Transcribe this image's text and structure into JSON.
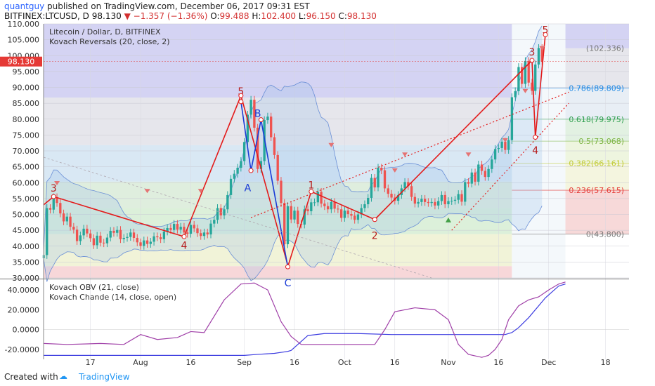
{
  "header": {
    "user": "quantguy",
    "published": "published on TradingView.com, December 06, 2017 09:31 EST",
    "symbol": "BITFINEX:LTCUSD, D",
    "last": "98.130",
    "change": "−1.357 (−1.36%)",
    "o_label": "O:",
    "o": "99.488",
    "h_label": "H:",
    "h": "102.400",
    "l_label": "L:",
    "l": "96.150",
    "c_label": "C:",
    "c": "98.130"
  },
  "legend": {
    "line1": "Litecoin / Dollar, D, BITFINEX",
    "line2": "Kovach Reversals (20, close, 2)"
  },
  "indicator_legend": {
    "line1": "Kovach OBV (21, close)",
    "line2": "Kovach Chande (14, close, open)"
  },
  "price_tag": "98.130",
  "footer": {
    "text": "Created with",
    "brand": "TradingView"
  },
  "colors": {
    "up": "#26a69a",
    "down": "#ef5350",
    "wave": "#e31b1b",
    "abc": "#1a3bd6",
    "obv": "#3b3be0",
    "chande": "#a040a8"
  },
  "chart_data": {
    "type": "candlestick",
    "y_ticks": [
      "110.000",
      "105.000",
      "100.000",
      "95.000",
      "90.000",
      "85.000",
      "80.000",
      "75.000",
      "70.000",
      "65.000",
      "60.000",
      "55.000",
      "50.000",
      "45.000",
      "40.000",
      "35.000",
      "30.000"
    ],
    "y_range": [
      30,
      110
    ],
    "ind_ticks": [
      "40.0000",
      "20.0000",
      "0.0000",
      "-20.0000"
    ],
    "ind_range": [
      -30,
      50
    ],
    "x_ticks": [
      "17",
      "Aug",
      "16",
      "Sep",
      "16",
      "Oct",
      "16",
      "Nov",
      "16",
      "Dec",
      "18"
    ],
    "x_range": [
      "2017-07-03",
      "2017-12-25"
    ],
    "fib_levels": [
      {
        "label": "0.786(89.809)",
        "value": 89.809,
        "color": "#1e88e5"
      },
      {
        "label": "0.618(79.975)",
        "value": 79.975,
        "color": "#2e9e4e"
      },
      {
        "label": "0.5(73.068)",
        "value": 73.068,
        "color": "#7cb342"
      },
      {
        "label": "0.382(66.161)",
        "value": 66.161,
        "color": "#c0ca33"
      },
      {
        "label": "0.236(57.615)",
        "value": 57.615,
        "color": "#e53935"
      },
      {
        "label": "0(43.800)",
        "value": 43.8,
        "color": "#777777"
      },
      {
        "label": "(102.336)",
        "value": 102.336,
        "color": "#777777"
      }
    ],
    "wave_labels": [
      {
        "text": "3",
        "x": "2017-07-06",
        "y": 58.5,
        "color": "#b71c1c"
      },
      {
        "text": "4",
        "x": "2017-08-14",
        "y": 40.5,
        "color": "#b71c1c"
      },
      {
        "text": "5",
        "x": "2017-08-31",
        "y": 89,
        "color": "#b71c1c"
      },
      {
        "text": "A",
        "x": "2017-09-02",
        "y": 58.6,
        "color": "#1a3bd6"
      },
      {
        "text": "B",
        "x": "2017-09-05",
        "y": 82,
        "color": "#1a3bd6"
      },
      {
        "text": "C",
        "x": "2017-09-14",
        "y": 28.7,
        "color": "#1a3bd6"
      },
      {
        "text": "1",
        "x": "2017-09-21",
        "y": 59.5,
        "color": "#b71c1c"
      },
      {
        "text": "2",
        "x": "2017-10-10",
        "y": 43.6,
        "color": "#b71c1c"
      },
      {
        "text": "3",
        "x": "2017-11-26",
        "y": 101.4,
        "color": "#b71c1c"
      },
      {
        "text": "4",
        "x": "2017-11-27",
        "y": 70.4,
        "color": "#b71c1c"
      },
      {
        "text": "5",
        "x": "2017-11-30",
        "y": 108.3,
        "color": "#b71c1c"
      }
    ],
    "series": [
      {
        "name": "LTCUSD",
        "type": "candlestick",
        "x_start": "2017-07-03",
        "step_days": 1,
        "close": [
          37.2,
          52,
          51.5,
          55.4,
          53.6,
          50.3,
          47.8,
          49.3,
          46.1,
          45.2,
          41.6,
          43.4,
          45.5,
          44,
          42.5,
          40.3,
          43.3,
          41.1,
          40.9,
          42.7,
          44.8,
          44.2,
          45.1,
          42.2,
          42.6,
          42.9,
          44.3,
          42.6,
          41.2,
          40.1,
          41.8,
          40.7,
          41.4,
          43.1,
          42.8,
          42.2,
          44.6,
          45.7,
          45.1,
          47,
          45.2,
          46.1,
          44.3,
          43.9,
          46.7,
          45.6,
          44.1,
          43.2,
          44.3,
          43.7,
          47.1,
          48.3,
          52,
          49.7,
          51.6,
          56.1,
          61.2,
          62.8,
          64.7,
          66.8,
          72.8,
          81.4,
          86.1,
          77.3,
          64.3,
          66.8,
          79.7,
          80.8,
          74.3,
          68.7,
          60.6,
          53.6,
          40.6,
          52.6,
          48.4,
          51.2,
          47,
          46.8,
          51.6,
          51,
          53.8,
          53.8,
          57.1,
          53.4,
          52.6,
          51.6,
          53.9,
          51.8,
          51.6,
          48.9,
          51.2,
          50.1,
          49.6,
          48.3,
          50,
          52,
          53.2,
          55.2,
          61.5,
          58.5,
          64.7,
          63.9,
          58.2,
          56.5,
          55.3,
          54.3,
          56.1,
          58.2,
          60.2,
          58.9,
          55.5,
          53.4,
          53.9,
          54.9,
          53.9,
          53.6,
          53.9,
          52.8,
          54.2,
          56.1,
          53.2,
          54.2,
          54.3,
          54.6,
          56.4,
          54,
          60.2,
          59.7,
          63.2,
          60.3,
          65.7,
          63.7,
          61.8,
          64.3,
          67.3,
          70.6,
          70.9,
          72.9,
          70.3,
          73.4,
          86.9,
          88.8,
          96.4,
          91.1,
          98.3,
          91.5,
          88.9,
          97.2,
          102.4,
          98.1
        ]
      }
    ]
  }
}
